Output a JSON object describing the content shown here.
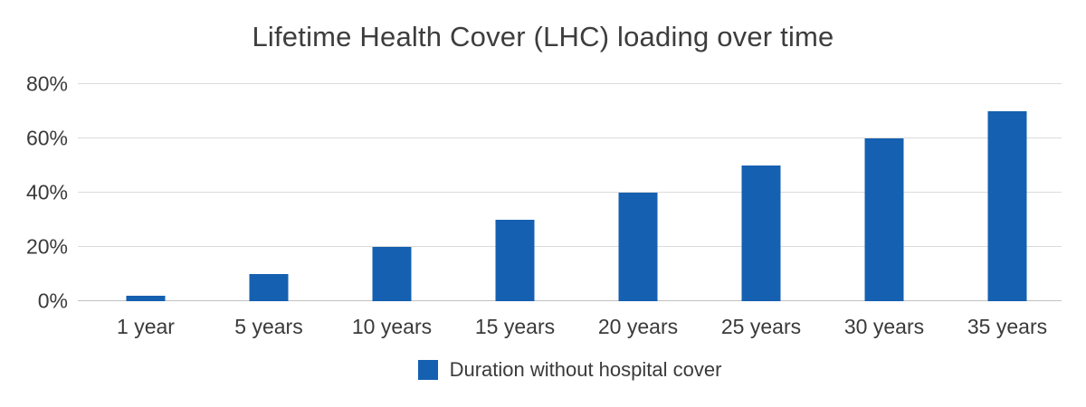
{
  "chart_data": {
    "type": "bar",
    "title": "Lifetime Health Cover (LHC) loading over time",
    "categories": [
      "1 year",
      "5 years",
      "10 years",
      "15 years",
      "20 years",
      "25 years",
      "30 years",
      "35 years"
    ],
    "values": [
      2,
      10,
      20,
      30,
      40,
      50,
      60,
      70
    ],
    "series_name": "Duration without hospital cover",
    "xlabel": "",
    "ylabel": "",
    "ylim": [
      0,
      80
    ],
    "yticks": [
      {
        "value": 0,
        "label": "0%"
      },
      {
        "value": 20,
        "label": "20%"
      },
      {
        "value": 40,
        "label": "40%"
      },
      {
        "value": 60,
        "label": "60%"
      },
      {
        "value": 80,
        "label": "80%"
      }
    ],
    "grid": true,
    "legend_position": "bottom",
    "bar_color": "#1560b0",
    "gridline_color": "#dcdcdc",
    "baseline_color": "#c2c2c2",
    "text_color": "#3a3a3a",
    "title_color": "#3d3d3d",
    "background_color": "#ffffff"
  },
  "legend": {
    "label": "Duration without hospital cover",
    "swatch_color": "#1560b0"
  }
}
